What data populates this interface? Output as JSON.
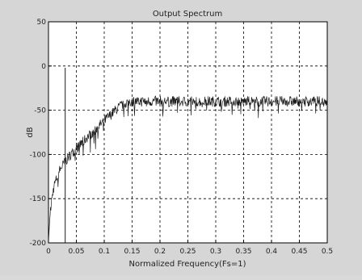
{
  "chart_data": {
    "type": "line",
    "title": "Output Spectrum",
    "xlabel": "Normalized Frequency(Fs=1)",
    "ylabel": "dB",
    "xlim": [
      0,
      0.5
    ],
    "ylim": [
      -200,
      50
    ],
    "xticks": [
      "0",
      "0.05",
      "0.1",
      "0.15",
      "0.2",
      "0.25",
      "0.3",
      "0.35",
      "0.4",
      "0.45",
      "0.5"
    ],
    "xtick_values": [
      0,
      0.05,
      0.1,
      0.15,
      0.2,
      0.25,
      0.3,
      0.35,
      0.4,
      0.45,
      0.5
    ],
    "yticks": [
      "50",
      "0",
      "-50",
      "-100",
      "-150",
      "-200"
    ],
    "ytick_values": [
      50,
      0,
      -50,
      -100,
      -150,
      -200
    ],
    "grid": true,
    "color": "#1a1a1a",
    "tone": {
      "x": 0.03,
      "y": -2
    },
    "series": [
      {
        "x": [
          0.0,
          0.002,
          0.005,
          0.01,
          0.02,
          0.03,
          0.04,
          0.05,
          0.06,
          0.07,
          0.08,
          0.09,
          0.1,
          0.11,
          0.12,
          0.13,
          0.14,
          0.15,
          0.16,
          0.18,
          0.2,
          0.22,
          0.25,
          0.28,
          0.3,
          0.32,
          0.35,
          0.38,
          0.4,
          0.42,
          0.45,
          0.47,
          0.5
        ],
        "y": [
          -200,
          -175,
          -155,
          -135,
          -118,
          -108,
          -100,
          -93,
          -87,
          -80,
          -74,
          -68,
          -62,
          -56,
          -50,
          -45,
          -41,
          -40,
          -40,
          -40,
          -40,
          -40,
          -40,
          -40,
          -40,
          -40,
          -40,
          -40,
          -40,
          -40,
          -40,
          -40,
          -40
        ]
      }
    ]
  }
}
